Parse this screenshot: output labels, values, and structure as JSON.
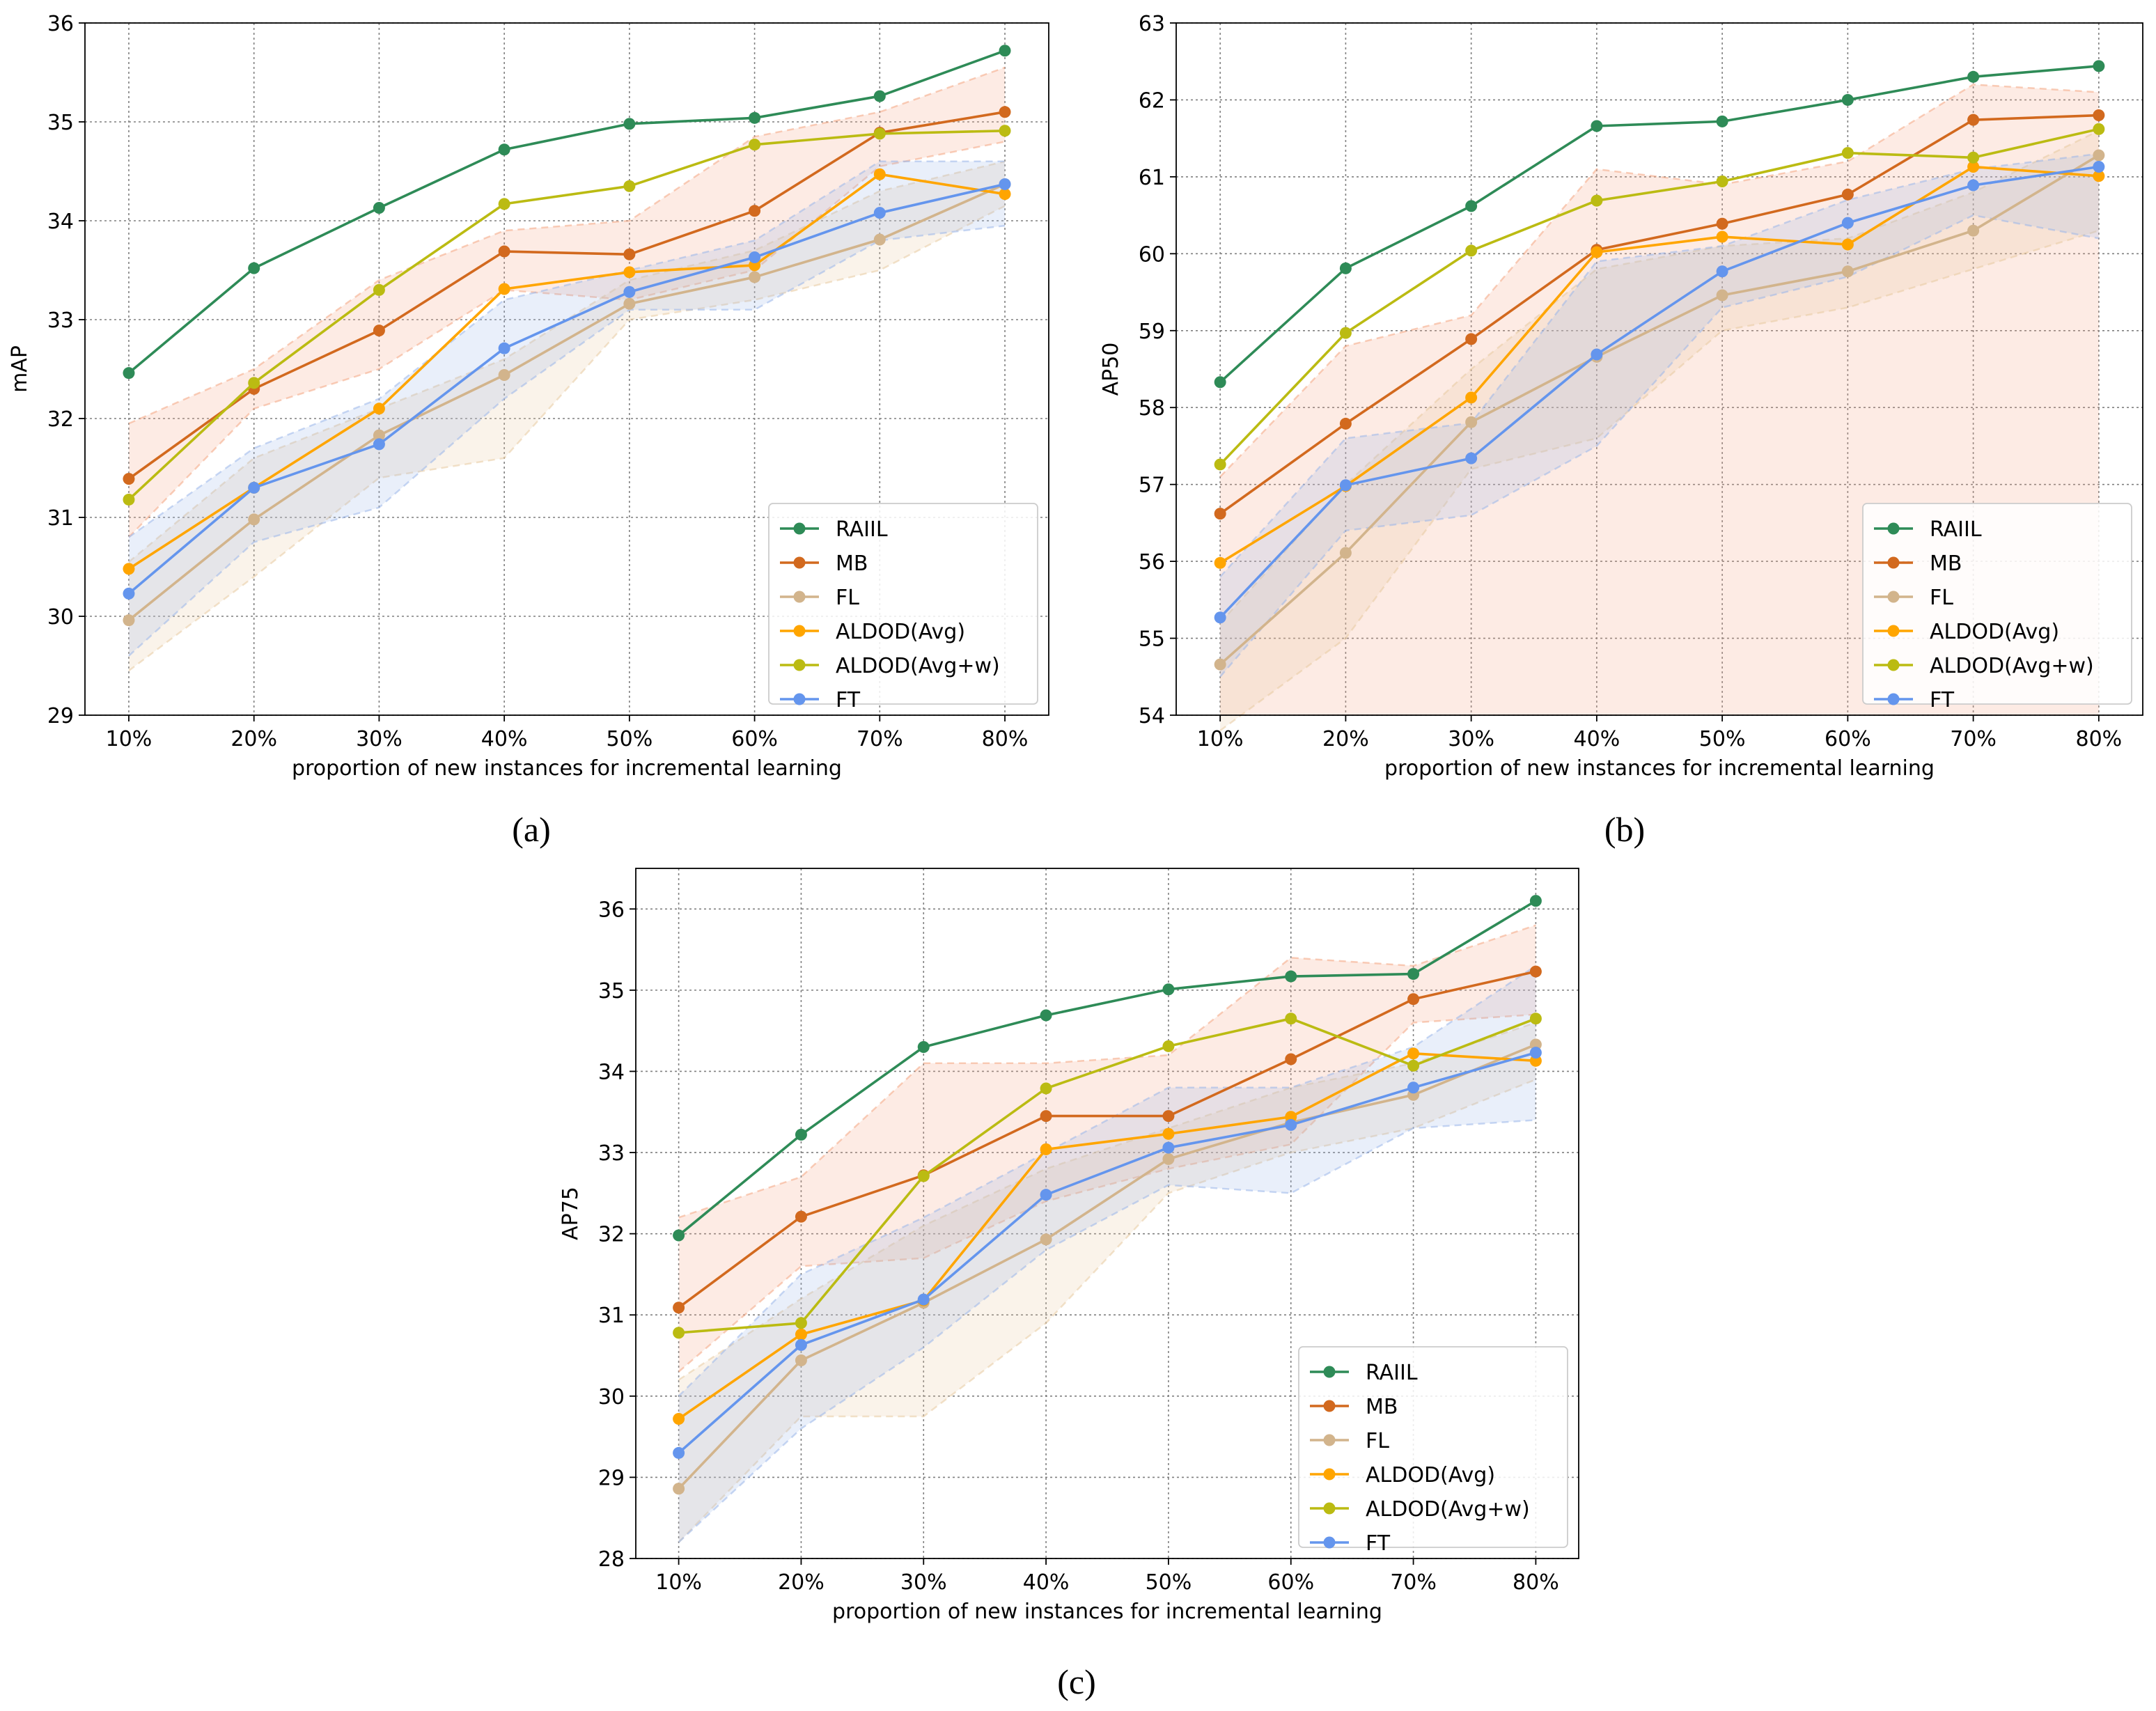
{
  "figure": {
    "captions": [
      "(a)",
      "(b)",
      "(c)"
    ],
    "series_colors": {
      "RAIIL": "#2e8b57",
      "MB": "#d2691e",
      "FL": "#d2b48c",
      "ALDOD(Avg)": "#ffa500",
      "ALDOD(Avg+w)": "#bbbb12",
      "FT": "#6495ed"
    },
    "band_colors": {
      "orange": "#f4a582",
      "tan": "#e8caa0",
      "blue": "#9ab6ea"
    }
  },
  "chart_data": [
    {
      "id": "a",
      "type": "line",
      "caption": "(a)",
      "xlabel": "proportion of new instances for incremental learning",
      "ylabel": "mAP",
      "categories": [
        "10%",
        "20%",
        "30%",
        "40%",
        "50%",
        "60%",
        "70%",
        "80%"
      ],
      "ylim": [
        29,
        36
      ],
      "yticks": [
        29,
        30,
        31,
        32,
        33,
        34,
        35,
        36
      ],
      "grid": true,
      "legend_position": "bottom-right",
      "series": [
        {
          "name": "RAIIL",
          "values": [
            32.46,
            33.52,
            34.13,
            34.72,
            34.98,
            35.04,
            35.26,
            35.72
          ]
        },
        {
          "name": "MB",
          "values": [
            31.39,
            32.3,
            32.89,
            33.69,
            33.66,
            34.1,
            34.89,
            35.1
          ]
        },
        {
          "name": "FL",
          "values": [
            29.96,
            30.98,
            31.83,
            32.44,
            33.16,
            33.43,
            33.81,
            34.37
          ]
        },
        {
          "name": "ALDOD(Avg)",
          "values": [
            30.48,
            31.3,
            32.1,
            33.31,
            33.48,
            33.55,
            34.47,
            34.27
          ]
        },
        {
          "name": "ALDOD(Avg+w)",
          "values": [
            31.18,
            32.36,
            33.3,
            34.17,
            34.35,
            34.77,
            34.88,
            34.91
          ]
        },
        {
          "name": "FT",
          "values": [
            30.23,
            31.3,
            31.74,
            32.71,
            33.28,
            33.63,
            34.08,
            34.37
          ]
        }
      ],
      "bands": [
        {
          "color": "orange",
          "upper": [
            31.95,
            32.5,
            33.4,
            33.9,
            34.0,
            34.85,
            35.1,
            35.55
          ],
          "lower": [
            30.8,
            32.1,
            32.5,
            33.3,
            33.2,
            33.5,
            34.55,
            34.8
          ]
        },
        {
          "color": "tan",
          "upper": [
            30.55,
            31.6,
            32.1,
            32.6,
            33.4,
            33.7,
            34.3,
            34.6
          ],
          "lower": [
            29.45,
            30.4,
            31.4,
            31.6,
            33.0,
            33.2,
            33.5,
            34.15
          ]
        },
        {
          "color": "blue",
          "upper": [
            30.8,
            31.7,
            32.2,
            33.2,
            33.5,
            33.8,
            34.6,
            34.6
          ],
          "lower": [
            29.6,
            30.75,
            31.1,
            32.2,
            33.1,
            33.1,
            33.8,
            33.95
          ]
        }
      ]
    },
    {
      "id": "b",
      "type": "line",
      "caption": "(b)",
      "xlabel": "proportion of new instances for incremental learning",
      "ylabel": "AP50",
      "categories": [
        "10%",
        "20%",
        "30%",
        "40%",
        "50%",
        "60%",
        "70%",
        "80%"
      ],
      "ylim": [
        54,
        63
      ],
      "yticks": [
        54,
        55,
        56,
        57,
        58,
        59,
        60,
        61,
        62,
        63
      ],
      "grid": true,
      "legend_position": "bottom-right",
      "series": [
        {
          "name": "RAIIL",
          "values": [
            58.33,
            59.81,
            60.62,
            61.66,
            61.72,
            62.0,
            62.3,
            62.44
          ]
        },
        {
          "name": "MB",
          "values": [
            56.62,
            57.79,
            58.89,
            60.05,
            60.39,
            60.77,
            61.74,
            61.8
          ]
        },
        {
          "name": "FL",
          "values": [
            54.66,
            56.11,
            57.81,
            58.66,
            59.46,
            59.77,
            60.3,
            61.28
          ]
        },
        {
          "name": "ALDOD(Avg)",
          "values": [
            55.98,
            56.98,
            58.13,
            60.02,
            60.22,
            60.12,
            61.13,
            61.01
          ]
        },
        {
          "name": "ALDOD(Avg+w)",
          "values": [
            57.26,
            58.97,
            60.04,
            60.69,
            60.94,
            61.31,
            61.25,
            61.62
          ]
        },
        {
          "name": "FT",
          "values": [
            55.27,
            56.99,
            57.34,
            58.69,
            59.77,
            60.4,
            60.89,
            61.13
          ]
        }
      ],
      "bands": [
        {
          "color": "orange",
          "upper": [
            57.1,
            58.8,
            59.2,
            61.1,
            60.9,
            61.2,
            62.2,
            62.1
          ]
        },
        {
          "color": "tan",
          "upper": [
            55.2,
            57.0,
            58.5,
            59.8,
            60.1,
            60.2,
            60.8,
            61.6
          ],
          "lower": [
            53.8,
            55.0,
            57.2,
            57.6,
            59.0,
            59.3,
            59.8,
            60.3
          ]
        },
        {
          "color": "blue",
          "upper": [
            55.8,
            57.6,
            57.8,
            59.9,
            60.1,
            60.7,
            61.1,
            61.3
          ],
          "lower": [
            54.5,
            56.4,
            56.6,
            57.5,
            59.3,
            59.7,
            60.5,
            60.2
          ]
        }
      ]
    },
    {
      "id": "c",
      "type": "line",
      "caption": "(c)",
      "xlabel": "proportion of new instances for incremental learning",
      "ylabel": "AP75",
      "categories": [
        "10%",
        "20%",
        "30%",
        "40%",
        "50%",
        "60%",
        "70%",
        "80%"
      ],
      "ylim": [
        28,
        36.5
      ],
      "yticks": [
        28,
        29,
        30,
        31,
        32,
        33,
        34,
        35,
        36
      ],
      "grid": true,
      "legend_position": "bottom-right",
      "series": [
        {
          "name": "RAIIL",
          "values": [
            31.98,
            33.22,
            34.3,
            34.69,
            35.01,
            35.17,
            35.2,
            36.1
          ]
        },
        {
          "name": "MB",
          "values": [
            31.09,
            32.21,
            32.72,
            33.45,
            33.45,
            34.15,
            34.89,
            35.23
          ]
        },
        {
          "name": "FL",
          "values": [
            28.86,
            30.44,
            31.15,
            31.93,
            32.92,
            33.37,
            33.71,
            34.33
          ]
        },
        {
          "name": "ALDOD(Avg)",
          "values": [
            29.72,
            30.76,
            31.18,
            33.04,
            33.23,
            33.44,
            34.22,
            34.13
          ]
        },
        {
          "name": "ALDOD(Avg+w)",
          "values": [
            30.78,
            30.9,
            32.71,
            33.79,
            34.31,
            34.65,
            34.07,
            34.65
          ]
        },
        {
          "name": "FT",
          "values": [
            29.3,
            30.63,
            31.19,
            32.48,
            33.06,
            33.34,
            33.8,
            34.23
          ]
        }
      ],
      "bands": [
        {
          "color": "orange",
          "upper": [
            32.2,
            32.7,
            34.1,
            34.1,
            34.2,
            35.4,
            35.3,
            35.8
          ],
          "lower": [
            30.3,
            31.6,
            31.7,
            32.4,
            32.8,
            33.1,
            34.6,
            34.7
          ]
        },
        {
          "color": "tan",
          "upper": [
            30.2,
            31.2,
            32.1,
            32.8,
            33.3,
            33.8,
            34.1,
            34.6
          ],
          "lower": [
            28.2,
            29.75,
            29.75,
            30.9,
            32.5,
            33.0,
            33.3,
            33.9
          ]
        },
        {
          "color": "blue",
          "upper": [
            30.0,
            31.5,
            32.2,
            33.0,
            33.8,
            33.8,
            34.3,
            35.3
          ],
          "lower": [
            28.2,
            29.6,
            30.6,
            31.8,
            32.6,
            32.5,
            33.3,
            33.4
          ]
        }
      ]
    }
  ]
}
